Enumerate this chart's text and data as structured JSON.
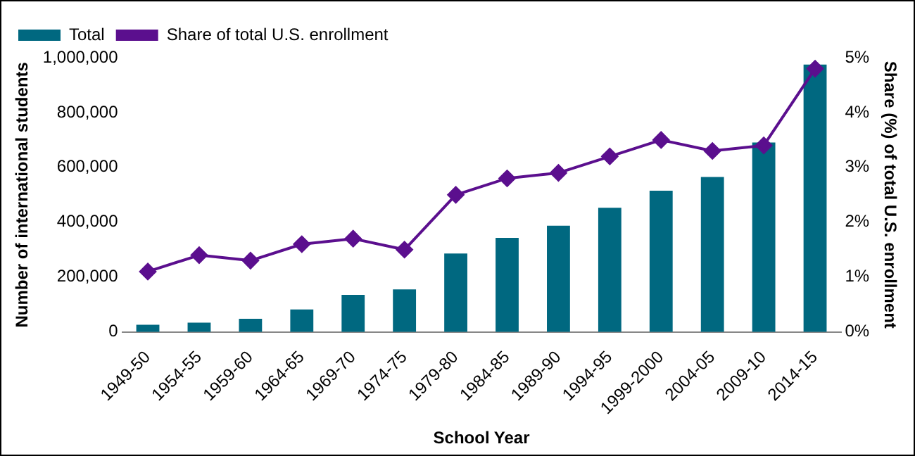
{
  "chart_data": {
    "type": "bar",
    "xlabel": "School Year",
    "ylabel": "Number of international students",
    "y2label": "Share (%) of total U.S. enrollment",
    "categories": [
      "1949-50",
      "1954-55",
      "1959-60",
      "1964-65",
      "1969-70",
      "1974-75",
      "1979-80",
      "1984-85",
      "1989-90",
      "1994-95",
      "1999-2000",
      "2004-05",
      "2009-10",
      "2014-15"
    ],
    "series": [
      {
        "name": "Total",
        "color": "#006880",
        "values": [
          26000,
          34000,
          48000,
          82000,
          135000,
          155000,
          286000,
          343000,
          387000,
          453000,
          515000,
          565000,
          691000,
          975000
        ]
      },
      {
        "name": "Share of total U.S. enrollment",
        "type": "line",
        "axis": "y2",
        "color": "#5b0f8e",
        "marker": "diamond",
        "values": [
          1.1,
          1.4,
          1.3,
          1.6,
          1.7,
          1.5,
          2.5,
          2.8,
          2.9,
          3.2,
          3.5,
          3.3,
          3.4,
          4.8
        ]
      }
    ],
    "ylim": [
      0,
      1000000
    ],
    "yticks": [
      {
        "value": 0,
        "label": "0"
      },
      {
        "value": 200000,
        "label": "200,000"
      },
      {
        "value": 400000,
        "label": "400,000"
      },
      {
        "value": 600000,
        "label": "600,000"
      },
      {
        "value": 800000,
        "label": "800,000"
      },
      {
        "value": 1000000,
        "label": "1,000,000"
      }
    ],
    "y2lim": [
      0,
      5
    ],
    "y2ticks": [
      {
        "value": 0,
        "label": "0%"
      },
      {
        "value": 1,
        "label": "1%"
      },
      {
        "value": 2,
        "label": "2%"
      },
      {
        "value": 3,
        "label": "3%"
      },
      {
        "value": 4,
        "label": "4%"
      },
      {
        "value": 5,
        "label": "5%"
      }
    ],
    "grid": false,
    "legend": "top left"
  }
}
